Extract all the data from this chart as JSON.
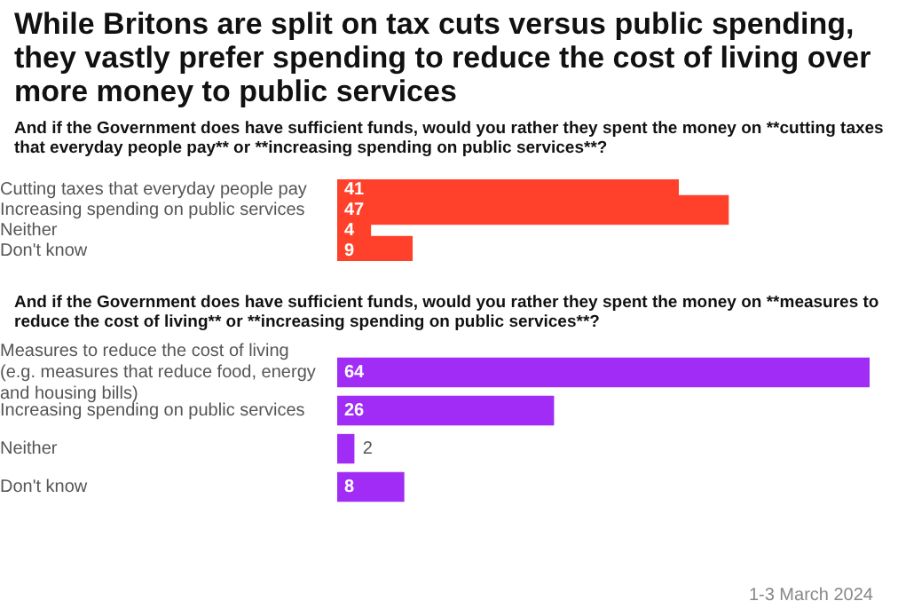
{
  "chart_data": [
    {
      "type": "bar",
      "orientation": "horizontal",
      "title": "While Britons are split on tax cuts versus public spending, they vastly prefer spending to reduce the cost of living over more money to public services",
      "subtitle": "And if the Government does have sufficient funds, would you rather they spent the money on **cutting taxes that everyday people pay** or **increasing spending on public services**?",
      "categories": [
        "Cutting taxes that everyday people pay",
        "Increasing spending on public services",
        "Neither",
        "Don't know"
      ],
      "values": [
        41,
        47,
        4,
        9
      ],
      "color": "#ff412c",
      "data_labels": true,
      "legend": false,
      "tick_labels": "y"
    },
    {
      "type": "bar",
      "orientation": "horizontal",
      "subtitle": "And if the Government does have sufficient funds, would you rather they spent the money on **measures to reduce the cost of living** or **increasing spending on public services**?",
      "categories": [
        "Measures to reduce the cost of living (e.g. measures that reduce food, energy and housing bills)",
        "Increasing spending on public services",
        "Neither",
        "Don't know"
      ],
      "values": [
        64,
        26,
        2,
        8
      ],
      "color": "#a02cf5",
      "data_labels": true,
      "legend": false,
      "tick_labels": "y",
      "annotations": [
        "1-3 March 2024"
      ]
    }
  ]
}
